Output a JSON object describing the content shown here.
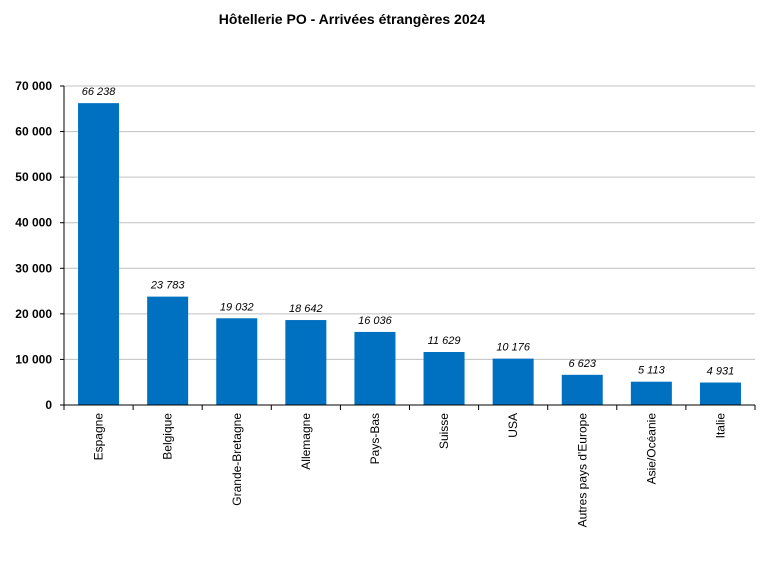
{
  "chart_data": {
    "type": "bar",
    "title": "Hôtellerie PO - Arrivées étrangères 2024",
    "xlabel": "",
    "ylabel": "",
    "categories": [
      "Espagne",
      "Belgique",
      "Grande-Bretagne",
      "Allemagne",
      "Pays-Bas",
      "Suisse",
      "USA",
      "Autres pays d'Europe",
      "Asie/Océanie",
      "Italie"
    ],
    "values": [
      66238,
      23783,
      19032,
      18642,
      16036,
      11629,
      10176,
      6623,
      5113,
      4931
    ],
    "data_labels": [
      "66 238",
      "23 783",
      "19 032",
      "18 642",
      "16 036",
      "11 629",
      "10 176",
      "6 623",
      "5 113",
      "4 931"
    ],
    "ylim": [
      0,
      70000
    ],
    "yticks": [
      0,
      10000,
      20000,
      30000,
      40000,
      50000,
      60000,
      70000
    ],
    "ytick_labels": [
      "0",
      "10 000",
      "20 000",
      "30 000",
      "40 000",
      "50 000",
      "60 000",
      "70 000"
    ],
    "grid": true,
    "legend": "none",
    "bar_color": "#0070C0"
  }
}
